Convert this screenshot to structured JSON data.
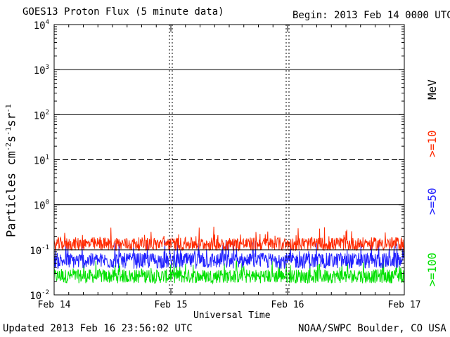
{
  "header": {
    "title": "GOES13 Proton Flux (5 minute data)",
    "begin": "Begin: 2013 Feb 14 0000 UTC"
  },
  "footer": {
    "updated": "Updated 2013 Feb 16 23:56:02 UTC",
    "credit": "NOAA/SWPC Boulder, CO USA"
  },
  "legend": {
    "unit": "MeV",
    "items": [
      {
        "label": ">=10",
        "color": "#ff2a00"
      },
      {
        "label": ">=50",
        "color": "#2020ff"
      },
      {
        "label": ">=100",
        "color": "#00e000"
      }
    ]
  },
  "chart_data": {
    "type": "line",
    "title": "GOES13 Proton Flux (5 minute data)",
    "xlabel": "Universal Time",
    "ylabel": "Particles cm^-2 s^-1 sr^-1",
    "y_scale": "log",
    "ylim": [
      0.01,
      10000
    ],
    "y_ticks": [
      {
        "value": 0.01,
        "base": "10",
        "exp": "-2"
      },
      {
        "value": 0.1,
        "base": "10",
        "exp": "-1"
      },
      {
        "value": 1,
        "base": "10",
        "exp": "0"
      },
      {
        "value": 10,
        "base": "10",
        "exp": "1"
      },
      {
        "value": 100,
        "base": "10",
        "exp": "2"
      },
      {
        "value": 1000,
        "base": "10",
        "exp": "3"
      },
      {
        "value": 10000,
        "base": "10",
        "exp": "4"
      }
    ],
    "x_ticks": [
      "Feb 14",
      "Feb 15",
      "Feb 16",
      "Feb 17"
    ],
    "xlim": [
      "2013-02-14 00:00",
      "2013-02-17 00:00"
    ],
    "threshold_line": 10,
    "grid": true,
    "series": [
      {
        "name": ">=10",
        "color": "#ff2a00",
        "typical": 0.13,
        "range": [
          0.085,
          0.33
        ]
      },
      {
        "name": ">=50",
        "color": "#2020ff",
        "typical": 0.055,
        "range": [
          0.033,
          0.17
        ]
      },
      {
        "name": ">=100",
        "color": "#00e000",
        "typical": 0.025,
        "range": [
          0.016,
          0.06
        ]
      }
    ]
  }
}
